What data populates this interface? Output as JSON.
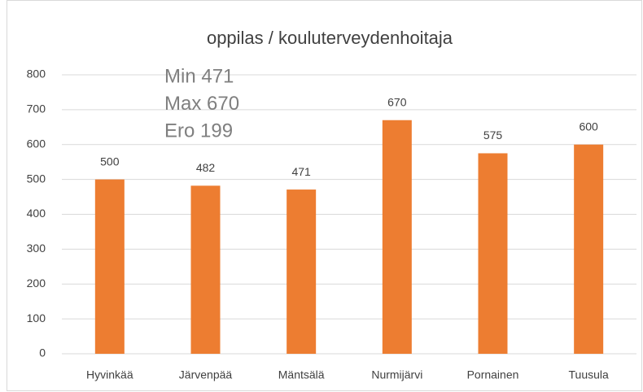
{
  "chart_data": {
    "type": "bar",
    "title": "oppilas /  kouluterveydenhoitaja",
    "annotations": [
      "Min 471",
      "Max 670",
      "Ero 199"
    ],
    "categories": [
      "Hyvinkää",
      "Järvenpää",
      "Mäntsälä",
      "Nurmijärvi",
      "Pornainen",
      "Tuusula"
    ],
    "values": [
      500,
      482,
      471,
      670,
      575,
      600
    ],
    "color": "#ed7d31",
    "ylim": [
      0,
      800
    ],
    "yticks": [
      0,
      100,
      200,
      300,
      400,
      500,
      600,
      700,
      800
    ],
    "grid": true
  }
}
